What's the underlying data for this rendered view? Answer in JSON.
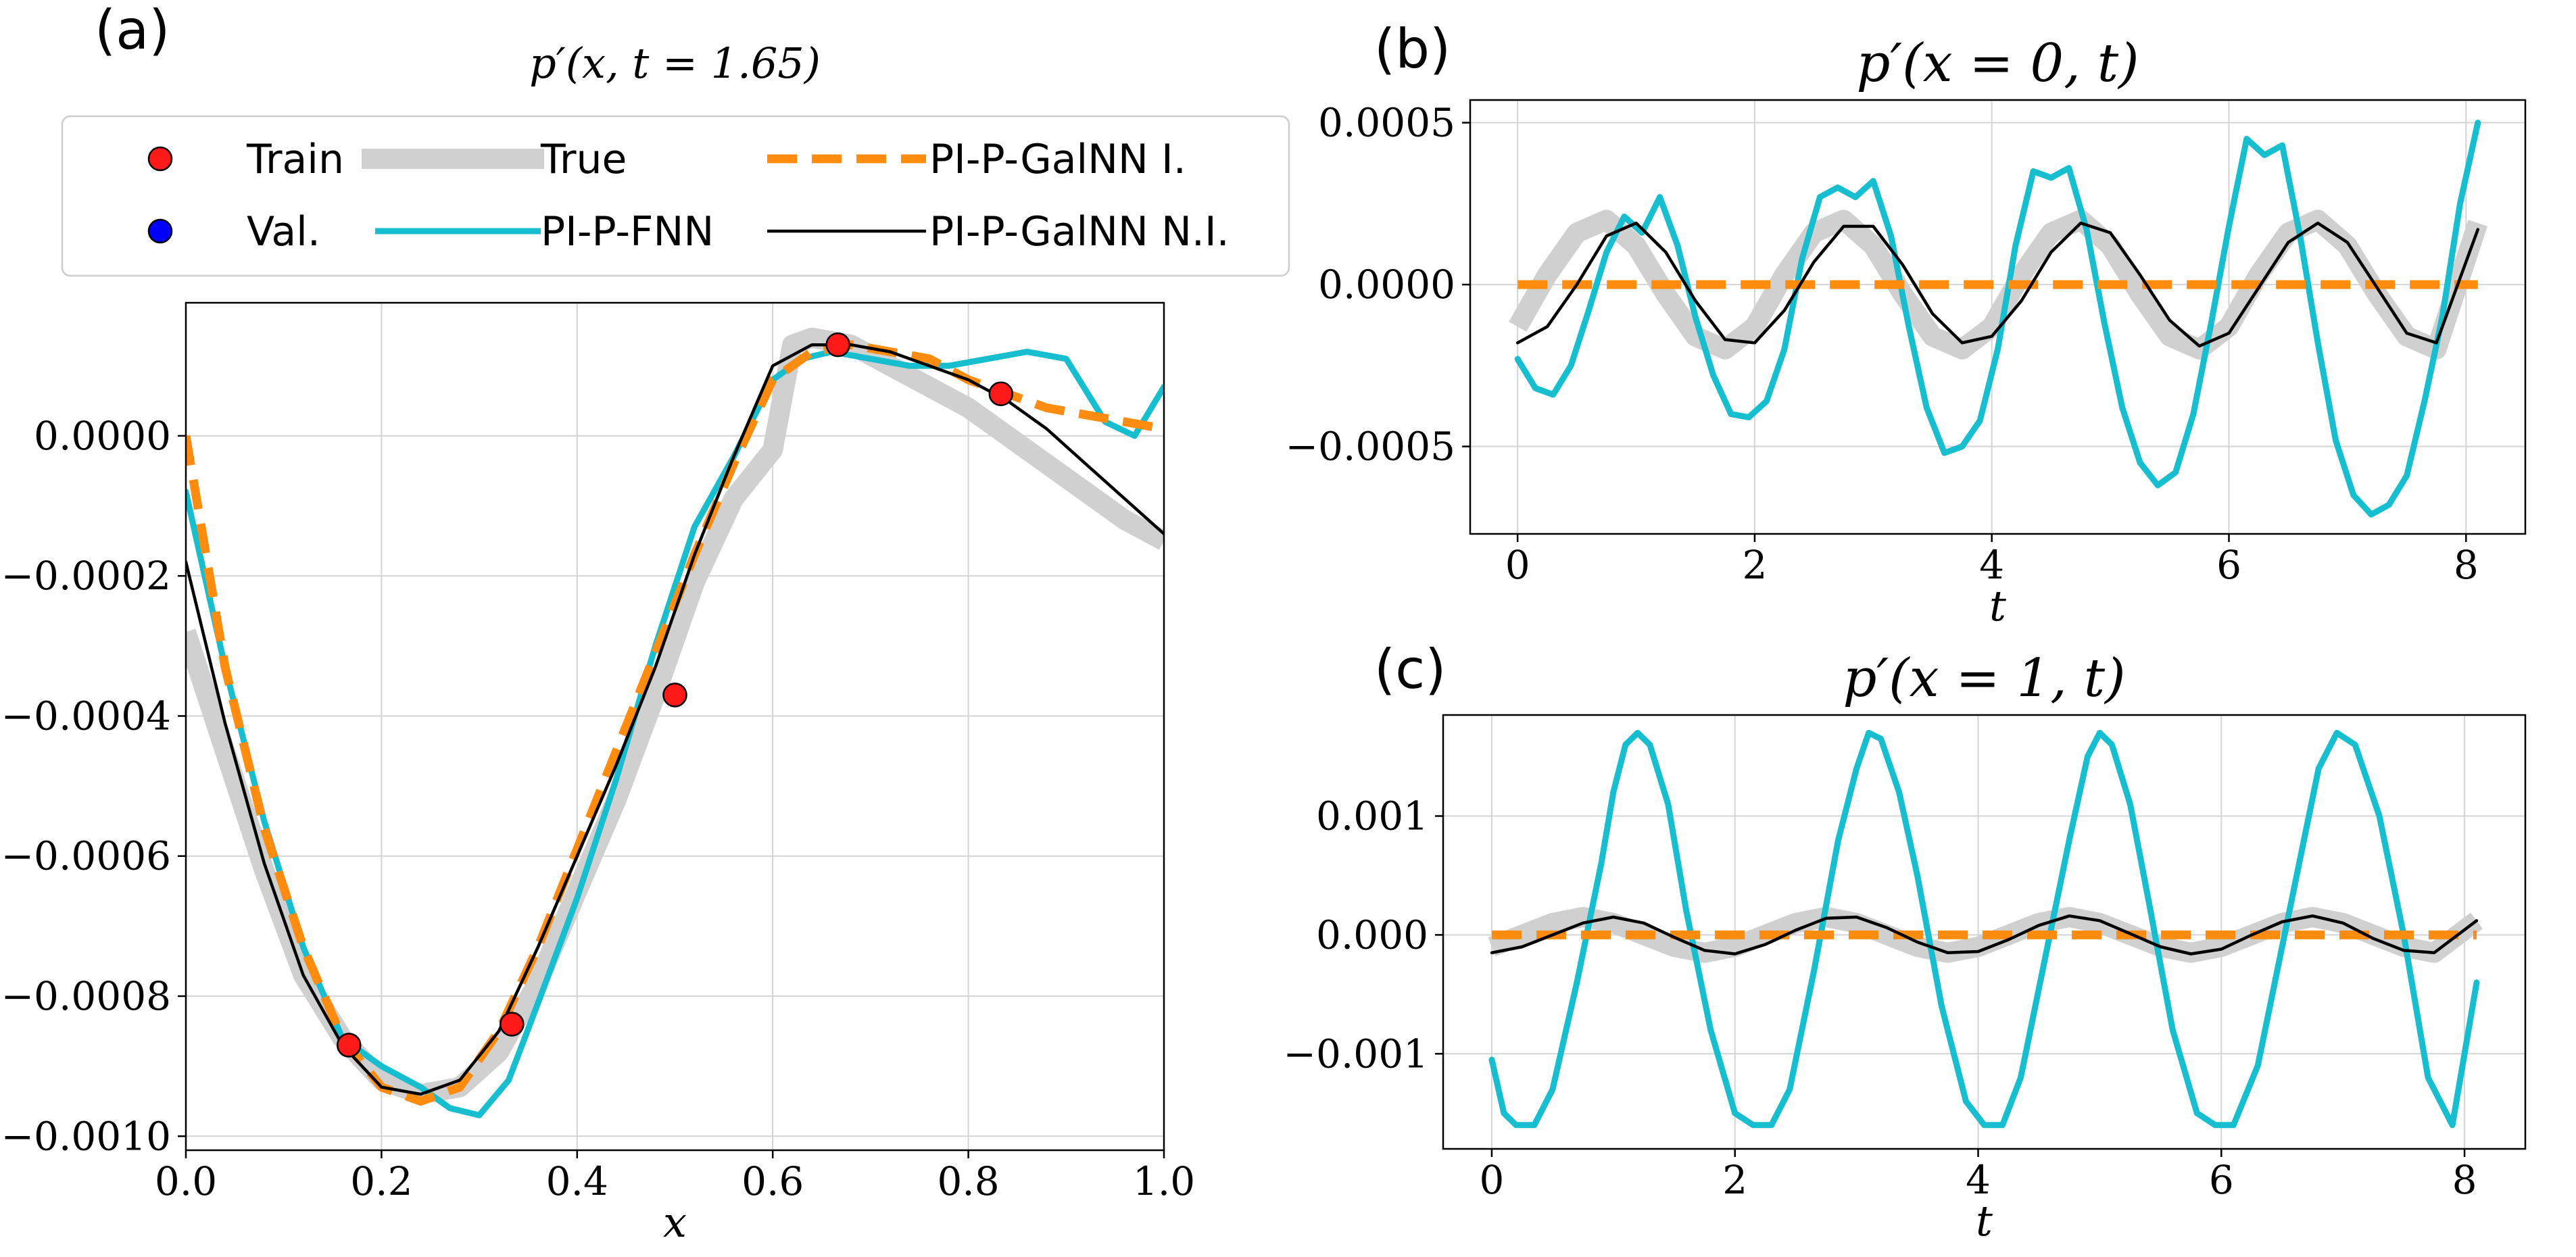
{
  "colors": {
    "true": "#d0d0d0",
    "fnn": "#17becf",
    "galnn_i": "#ff8c0f",
    "galnn_ni": "#000000",
    "train": "#ff1a1a",
    "val": "#0000ff",
    "grid": "#d4d4d4",
    "axes": "#000000"
  },
  "legend": {
    "train": "Train",
    "val": "Val.",
    "true": "True",
    "fnn": "PI-P-FNN",
    "galnn_i": "PI-P-GalNN I.",
    "galnn_ni": "PI-P-GalNN N.I."
  },
  "chart_data": [
    {
      "panel": "(a)",
      "type": "line",
      "title": "p′(x, t = 1.65)",
      "xlabel": "x",
      "ylabel": "",
      "xlim": [
        0.0,
        1.0
      ],
      "ylim": [
        -0.00102,
        0.00019
      ],
      "grid": true,
      "legend_placement": "top",
      "xticks": [
        {
          "v": 0.0,
          "label": "0.0"
        },
        {
          "v": 0.2,
          "label": "0.2"
        },
        {
          "v": 0.4,
          "label": "0.4"
        },
        {
          "v": 0.6,
          "label": "0.6"
        },
        {
          "v": 0.8,
          "label": "0.8"
        },
        {
          "v": 1.0,
          "label": "1.0"
        }
      ],
      "yticks": [
        {
          "v": 0.0,
          "label": "0.0000"
        },
        {
          "v": -0.0002,
          "label": "−0.0002"
        },
        {
          "v": -0.0004,
          "label": "−0.0004"
        },
        {
          "v": -0.0006,
          "label": "−0.0006"
        },
        {
          "v": -0.0008,
          "label": "−0.0008"
        },
        {
          "v": -0.001,
          "label": "−0.0010"
        }
      ],
      "series": [
        {
          "name": "True",
          "key": "true",
          "x": [
            0,
            0.04,
            0.08,
            0.12,
            0.16,
            0.2,
            0.24,
            0.28,
            0.32,
            0.36,
            0.4,
            0.44,
            0.48,
            0.52,
            0.56,
            0.6,
            0.62,
            0.64,
            0.68,
            0.72,
            0.76,
            0.8,
            0.84,
            0.88,
            0.92,
            0.96,
            1.0
          ],
          "y": [
            -0.00028,
            -0.00045,
            -0.00062,
            -0.00077,
            -0.00086,
            -0.00092,
            -0.00094,
            -0.00093,
            -0.00088,
            -0.00078,
            -0.00065,
            -0.00052,
            -0.00037,
            -0.00021,
            -9e-05,
            -2e-05,
            0.00013,
            0.00014,
            0.00013,
            0.0001,
            7e-05,
            4e-05,
            0.0,
            -4e-05,
            -8e-05,
            -0.00012,
            -0.00015
          ]
        },
        {
          "name": "PI-P-FNN",
          "key": "fnn",
          "x": [
            0,
            0.04,
            0.08,
            0.12,
            0.16,
            0.2,
            0.24,
            0.27,
            0.3,
            0.33,
            0.36,
            0.4,
            0.44,
            0.48,
            0.52,
            0.56,
            0.6,
            0.63,
            0.66,
            0.7,
            0.74,
            0.78,
            0.82,
            0.86,
            0.9,
            0.94,
            0.97,
            1.0
          ],
          "y": [
            -8e-05,
            -0.00033,
            -0.00055,
            -0.00073,
            -0.00086,
            -0.0009,
            -0.00093,
            -0.00096,
            -0.00097,
            -0.00092,
            -0.00081,
            -0.00066,
            -0.00049,
            -0.0003,
            -0.00013,
            -3e-05,
            8e-05,
            0.00011,
            0.00012,
            0.00011,
            0.0001,
            0.0001,
            0.00011,
            0.00012,
            0.00011,
            2e-05,
            0.0,
            7e-05
          ]
        },
        {
          "name": "PI-P-GalNN I.",
          "key": "galnn_i",
          "x": [
            0,
            0.04,
            0.08,
            0.12,
            0.16,
            0.2,
            0.24,
            0.28,
            0.32,
            0.36,
            0.4,
            0.44,
            0.48,
            0.52,
            0.56,
            0.6,
            0.64,
            0.68,
            0.72,
            0.76,
            0.8,
            0.84,
            0.88,
            0.92,
            0.96,
            1.0
          ],
          "y": [
            0.0,
            -0.00033,
            -0.00056,
            -0.00073,
            -0.00086,
            -0.00093,
            -0.00095,
            -0.00093,
            -0.00085,
            -0.00073,
            -0.00059,
            -0.00045,
            -0.00031,
            -0.00017,
            -4e-05,
            8e-05,
            0.00012,
            0.00013,
            0.00012,
            0.00011,
            8e-05,
            6e-05,
            4e-05,
            3e-05,
            2e-05,
            1e-05
          ]
        },
        {
          "name": "PI-P-GalNN N.I.",
          "key": "galnn_ni",
          "x": [
            0,
            0.04,
            0.08,
            0.12,
            0.16,
            0.2,
            0.24,
            0.28,
            0.32,
            0.36,
            0.4,
            0.44,
            0.48,
            0.52,
            0.56,
            0.6,
            0.64,
            0.68,
            0.72,
            0.76,
            0.8,
            0.84,
            0.88,
            0.92,
            0.96,
            1.0
          ],
          "y": [
            -0.00018,
            -0.00041,
            -0.00061,
            -0.00077,
            -0.00087,
            -0.00093,
            -0.00094,
            -0.00092,
            -0.00085,
            -0.00073,
            -0.0006,
            -0.00047,
            -0.00033,
            -0.00017,
            -3e-05,
            0.0001,
            0.00013,
            0.00013,
            0.00012,
            0.0001,
            8e-05,
            5e-05,
            1e-05,
            -4e-05,
            -9e-05,
            -0.00014
          ]
        }
      ],
      "train_points": {
        "x": [
          0.1667,
          0.3333,
          0.5,
          0.6667,
          0.8333
        ],
        "y": [
          -0.00087,
          -0.00084,
          -0.00037,
          0.00013,
          6e-05
        ]
      }
    },
    {
      "panel": "(b)",
      "type": "line",
      "title": "p′(x = 0, t)",
      "xlabel": "t",
      "ylabel": "",
      "xlim": [
        -0.4,
        8.5
      ],
      "ylim": [
        -0.00077,
        0.00057
      ],
      "grid": true,
      "xticks": [
        {
          "v": 0,
          "label": "0"
        },
        {
          "v": 2,
          "label": "2"
        },
        {
          "v": 4,
          "label": "4"
        },
        {
          "v": 6,
          "label": "6"
        },
        {
          "v": 8,
          "label": "8"
        }
      ],
      "yticks": [
        {
          "v": 0.0005,
          "label": "0.0005"
        },
        {
          "v": 0.0,
          "label": "0.0000"
        },
        {
          "v": -0.0005,
          "label": "−0.0005"
        }
      ],
      "series": [
        {
          "name": "True",
          "key": "true",
          "x": [
            0,
            0.25,
            0.5,
            0.75,
            1.0,
            1.25,
            1.5,
            1.75,
            2.0,
            2.25,
            2.5,
            2.75,
            3.0,
            3.25,
            3.5,
            3.75,
            4.0,
            4.25,
            4.5,
            4.75,
            5.0,
            5.25,
            5.5,
            5.75,
            6.0,
            6.25,
            6.5,
            6.75,
            7.0,
            7.25,
            7.5,
            7.75,
            8.1
          ],
          "y": [
            -0.00013,
            3e-05,
            0.00016,
            0.0002,
            0.00012,
            -3e-05,
            -0.00016,
            -0.0002,
            -0.00013,
            3e-05,
            0.00016,
            0.0002,
            0.00012,
            -3e-05,
            -0.00016,
            -0.0002,
            -0.00013,
            3e-05,
            0.00016,
            0.0002,
            0.00012,
            -3e-05,
            -0.00016,
            -0.0002,
            -0.00013,
            3e-05,
            0.00016,
            0.0002,
            0.00012,
            -3e-05,
            -0.00016,
            -0.0002,
            0.00019
          ]
        },
        {
          "name": "PI-P-FNN",
          "key": "fnn",
          "x": [
            0,
            0.15,
            0.3,
            0.45,
            0.6,
            0.75,
            0.9,
            1.05,
            1.2,
            1.35,
            1.5,
            1.65,
            1.8,
            1.95,
            2.1,
            2.25,
            2.4,
            2.55,
            2.7,
            2.85,
            3.0,
            3.15,
            3.3,
            3.45,
            3.6,
            3.75,
            3.9,
            4.05,
            4.2,
            4.35,
            4.5,
            4.65,
            4.8,
            4.95,
            5.1,
            5.25,
            5.4,
            5.55,
            5.7,
            5.85,
            6.0,
            6.15,
            6.3,
            6.45,
            6.6,
            6.75,
            6.9,
            7.05,
            7.2,
            7.35,
            7.5,
            7.65,
            7.8,
            7.95,
            8.1
          ],
          "y": [
            -0.00023,
            -0.00032,
            -0.00034,
            -0.00025,
            -8e-05,
            0.0001,
            0.00021,
            0.00016,
            0.00027,
            0.00012,
            -0.0001,
            -0.00028,
            -0.0004,
            -0.00041,
            -0.00036,
            -0.0002,
            8e-05,
            0.00027,
            0.0003,
            0.00027,
            0.00032,
            0.00015,
            -0.00013,
            -0.00038,
            -0.00052,
            -0.0005,
            -0.00042,
            -0.0002,
            0.00012,
            0.00035,
            0.00033,
            0.00036,
            0.00017,
            -0.00012,
            -0.00038,
            -0.00055,
            -0.00062,
            -0.00058,
            -0.0004,
            -0.00012,
            0.00018,
            0.00045,
            0.0004,
            0.00043,
            0.00015,
            -0.00018,
            -0.00048,
            -0.00065,
            -0.00071,
            -0.00068,
            -0.00059,
            -0.00036,
            -0.0001,
            0.00025,
            0.0005
          ]
        },
        {
          "name": "PI-P-GalNN I.",
          "key": "galnn_i",
          "x": [
            0,
            8.1
          ],
          "y": [
            0.0,
            0.0
          ]
        },
        {
          "name": "PI-P-GalNN N.I.",
          "key": "galnn_ni",
          "x": [
            0,
            0.25,
            0.5,
            0.75,
            1.0,
            1.25,
            1.5,
            1.75,
            2.0,
            2.25,
            2.5,
            2.75,
            3.0,
            3.25,
            3.5,
            3.75,
            4.0,
            4.25,
            4.5,
            4.75,
            5.0,
            5.25,
            5.5,
            5.75,
            6.0,
            6.25,
            6.5,
            6.75,
            7.0,
            7.25,
            7.5,
            7.75,
            8.1
          ],
          "y": [
            -0.00018,
            -0.00013,
            0.0,
            0.00015,
            0.00019,
            0.0001,
            -5e-05,
            -0.00017,
            -0.00018,
            -8e-05,
            7e-05,
            0.00018,
            0.00018,
            6e-05,
            -9e-05,
            -0.00018,
            -0.00016,
            -5e-05,
            0.0001,
            0.00019,
            0.00016,
            3e-05,
            -0.00011,
            -0.00019,
            -0.00015,
            -1e-05,
            0.00013,
            0.00019,
            0.00013,
            -1e-05,
            -0.00015,
            -0.00018,
            0.00017
          ]
        }
      ]
    },
    {
      "panel": "(c)",
      "type": "line",
      "title": "p′(x = 1, t)",
      "xlabel": "t",
      "ylabel": "",
      "xlim": [
        -0.4,
        8.5
      ],
      "ylim": [
        -0.0018,
        0.00185
      ],
      "grid": true,
      "xticks": [
        {
          "v": 0,
          "label": "0"
        },
        {
          "v": 2,
          "label": "2"
        },
        {
          "v": 4,
          "label": "4"
        },
        {
          "v": 6,
          "label": "6"
        },
        {
          "v": 8,
          "label": "8"
        }
      ],
      "yticks": [
        {
          "v": 0.001,
          "label": "0.001"
        },
        {
          "v": 0.0,
          "label": "0.000"
        },
        {
          "v": -0.001,
          "label": "−0.001"
        }
      ],
      "series": [
        {
          "name": "True",
          "key": "true",
          "x": [
            0,
            0.25,
            0.5,
            0.75,
            1.0,
            1.25,
            1.5,
            1.75,
            2.0,
            2.25,
            2.5,
            2.75,
            3.0,
            3.25,
            3.5,
            3.75,
            4.0,
            4.25,
            4.5,
            4.75,
            5.0,
            5.25,
            5.5,
            5.75,
            6.0,
            6.25,
            6.5,
            6.75,
            7.0,
            7.25,
            7.5,
            7.75,
            8.1
          ],
          "y": [
            -0.0001,
            0.0,
            0.0001,
            0.00015,
            0.0001,
            0.0,
            -0.0001,
            -0.00015,
            -0.0001,
            0.0,
            0.0001,
            0.00015,
            0.0001,
            0.0,
            -0.0001,
            -0.00015,
            -0.0001,
            0.0,
            0.0001,
            0.00015,
            0.0001,
            0.0,
            -0.0001,
            -0.00015,
            -0.0001,
            0.0,
            0.0001,
            0.00015,
            0.0001,
            0.0,
            -0.0001,
            -0.00015,
            0.00012
          ]
        },
        {
          "name": "PI-P-FNN",
          "key": "fnn",
          "x": [
            0,
            0.1,
            0.2,
            0.35,
            0.5,
            0.7,
            0.9,
            1.0,
            1.1,
            1.2,
            1.3,
            1.45,
            1.6,
            1.8,
            2.0,
            2.15,
            2.3,
            2.45,
            2.65,
            2.85,
            3.0,
            3.1,
            3.2,
            3.35,
            3.5,
            3.7,
            3.9,
            4.05,
            4.2,
            4.35,
            4.55,
            4.75,
            4.9,
            5.0,
            5.1,
            5.25,
            5.4,
            5.6,
            5.8,
            5.95,
            6.1,
            6.3,
            6.5,
            6.7,
            6.8,
            6.95,
            7.1,
            7.3,
            7.5,
            7.7,
            7.9,
            8.1
          ],
          "y": [
            -0.00105,
            -0.0015,
            -0.0016,
            -0.0016,
            -0.0013,
            -0.0004,
            0.0006,
            0.0012,
            0.0016,
            0.0017,
            0.0016,
            0.0011,
            0.0002,
            -0.0008,
            -0.0015,
            -0.0016,
            -0.0016,
            -0.0013,
            -0.0003,
            0.0008,
            0.0014,
            0.0017,
            0.00165,
            0.0012,
            0.0005,
            -0.0006,
            -0.0014,
            -0.0016,
            -0.0016,
            -0.0012,
            -0.0002,
            0.0008,
            0.0015,
            0.0017,
            0.0016,
            0.0011,
            0.0003,
            -0.0008,
            -0.0015,
            -0.0016,
            -0.0016,
            -0.0011,
            -0.0001,
            0.0009,
            0.0014,
            0.0017,
            0.0016,
            0.001,
            0.0,
            -0.0012,
            -0.0016,
            -0.0004
          ]
        },
        {
          "name": "PI-P-GalNN I.",
          "key": "galnn_i",
          "x": [
            0,
            8.1
          ],
          "y": [
            0.0,
            0.0
          ]
        },
        {
          "name": "PI-P-GalNN N.I.",
          "key": "galnn_ni",
          "x": [
            0,
            0.25,
            0.5,
            0.75,
            1.0,
            1.25,
            1.5,
            1.75,
            2.0,
            2.25,
            2.5,
            2.75,
            3.0,
            3.25,
            3.5,
            3.75,
            4.0,
            4.25,
            4.5,
            4.75,
            5.0,
            5.25,
            5.5,
            5.75,
            6.0,
            6.25,
            6.5,
            6.75,
            7.0,
            7.25,
            7.5,
            7.75,
            8.1
          ],
          "y": [
            -0.00015,
            -0.0001,
            0.0,
            0.0001,
            0.00015,
            0.0001,
            -2e-05,
            -0.00013,
            -0.00016,
            -8e-05,
            4e-05,
            0.00014,
            0.00015,
            6e-05,
            -6e-05,
            -0.00015,
            -0.00014,
            -4e-05,
            8e-05,
            0.00016,
            0.00012,
            1e-05,
            -0.0001,
            -0.00016,
            -0.00012,
            0.0,
            0.00011,
            0.00016,
            0.0001,
            -3e-05,
            -0.00013,
            -0.00015,
            0.00012
          ]
        }
      ]
    }
  ]
}
